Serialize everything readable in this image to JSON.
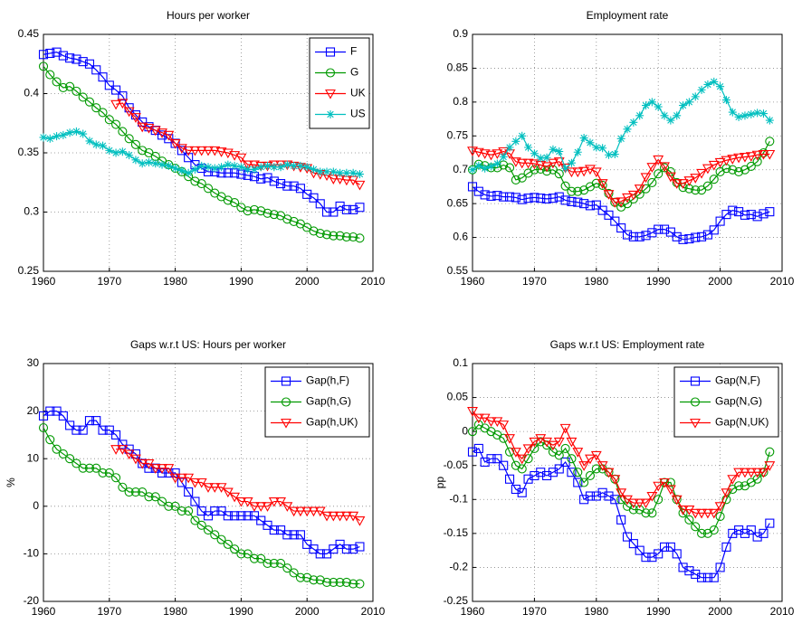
{
  "chart_data": [
    {
      "type": "line",
      "title": "Hours per worker",
      "x": [
        1960,
        1961,
        1962,
        1963,
        1964,
        1965,
        1966,
        1967,
        1968,
        1969,
        1970,
        1971,
        1972,
        1973,
        1974,
        1975,
        1976,
        1977,
        1978,
        1979,
        1980,
        1981,
        1982,
        1983,
        1984,
        1985,
        1986,
        1987,
        1988,
        1989,
        1990,
        1991,
        1992,
        1993,
        1994,
        1995,
        1996,
        1997,
        1998,
        1999,
        2000,
        2001,
        2002,
        2003,
        2004,
        2005,
        2006,
        2007,
        2008
      ],
      "xlim": [
        1960,
        2010
      ],
      "xticks": [
        1960,
        1970,
        1980,
        1990,
        2000,
        2010
      ],
      "ylim": [
        0.25,
        0.45
      ],
      "yticks": [
        0.25,
        0.3,
        0.35,
        0.4,
        0.45
      ],
      "grid": true,
      "legend": "northeast",
      "series": [
        {
          "name": "F",
          "color": "#0000ff",
          "marker": "square",
          "values": [
            0.433,
            0.434,
            0.435,
            0.432,
            0.43,
            0.429,
            0.427,
            0.425,
            0.42,
            0.414,
            0.407,
            0.403,
            0.398,
            0.388,
            0.382,
            0.376,
            0.372,
            0.369,
            0.365,
            0.362,
            0.358,
            0.352,
            0.346,
            0.34,
            0.337,
            0.334,
            0.334,
            0.333,
            0.333,
            0.333,
            0.332,
            0.331,
            0.33,
            0.328,
            0.329,
            0.326,
            0.324,
            0.322,
            0.322,
            0.32,
            0.315,
            0.312,
            0.307,
            0.3,
            0.3,
            0.305,
            0.302,
            0.302,
            0.304
          ]
        },
        {
          "name": "G",
          "color": "#009900",
          "marker": "circle",
          "values": [
            0.423,
            0.416,
            0.41,
            0.405,
            0.406,
            0.402,
            0.397,
            0.393,
            0.388,
            0.384,
            0.378,
            0.374,
            0.368,
            0.362,
            0.357,
            0.352,
            0.35,
            0.347,
            0.343,
            0.34,
            0.337,
            0.334,
            0.33,
            0.326,
            0.324,
            0.32,
            0.316,
            0.313,
            0.31,
            0.308,
            0.304,
            0.301,
            0.302,
            0.301,
            0.299,
            0.298,
            0.297,
            0.294,
            0.292,
            0.29,
            0.287,
            0.284,
            0.282,
            0.281,
            0.28,
            0.28,
            0.279,
            0.279,
            0.278
          ]
        },
        {
          "name": "UK",
          "color": "#ff0000",
          "marker": "triangle",
          "values": [
            null,
            null,
            null,
            null,
            null,
            null,
            null,
            null,
            null,
            null,
            null,
            0.391,
            0.392,
            0.385,
            0.38,
            0.372,
            0.371,
            0.369,
            0.367,
            0.365,
            0.358,
            0.354,
            0.352,
            0.352,
            0.352,
            0.352,
            0.352,
            0.351,
            0.35,
            0.348,
            0.346,
            0.34,
            0.34,
            0.339,
            0.339,
            0.34,
            0.34,
            0.34,
            0.339,
            0.338,
            0.337,
            0.333,
            0.332,
            0.331,
            0.328,
            0.328,
            0.327,
            0.327,
            0.323
          ]
        },
        {
          "name": "US",
          "color": "#00bfbf",
          "marker": "star",
          "values": [
            0.363,
            0.362,
            0.364,
            0.365,
            0.367,
            0.368,
            0.366,
            0.36,
            0.357,
            0.356,
            0.352,
            0.35,
            0.351,
            0.348,
            0.344,
            0.341,
            0.342,
            0.341,
            0.34,
            0.339,
            0.337,
            0.335,
            0.333,
            0.336,
            0.339,
            0.338,
            0.337,
            0.338,
            0.34,
            0.339,
            0.338,
            0.336,
            0.336,
            0.338,
            0.339,
            0.338,
            0.338,
            0.34,
            0.339,
            0.339,
            0.338,
            0.336,
            0.334,
            0.334,
            0.334,
            0.333,
            0.333,
            0.333,
            0.332
          ]
        }
      ]
    },
    {
      "type": "line",
      "title": "Employment rate",
      "x": [
        1960,
        1961,
        1962,
        1963,
        1964,
        1965,
        1966,
        1967,
        1968,
        1969,
        1970,
        1971,
        1972,
        1973,
        1974,
        1975,
        1976,
        1977,
        1978,
        1979,
        1980,
        1981,
        1982,
        1983,
        1984,
        1985,
        1986,
        1987,
        1988,
        1989,
        1990,
        1991,
        1992,
        1993,
        1994,
        1995,
        1996,
        1997,
        1998,
        1999,
        2000,
        2001,
        2002,
        2003,
        2004,
        2005,
        2006,
        2007,
        2008
      ],
      "xlim": [
        1960,
        2010
      ],
      "xticks": [
        1960,
        1970,
        1980,
        1990,
        2000,
        2010
      ],
      "ylim": [
        0.55,
        0.9
      ],
      "yticks": [
        0.55,
        0.6,
        0.65,
        0.7,
        0.75,
        0.8,
        0.85,
        0.9
      ],
      "grid": true,
      "series": [
        {
          "name": "F",
          "color": "#0000ff",
          "marker": "square",
          "values": [
            0.675,
            0.668,
            0.663,
            0.661,
            0.662,
            0.66,
            0.66,
            0.659,
            0.656,
            0.658,
            0.659,
            0.658,
            0.657,
            0.658,
            0.66,
            0.655,
            0.653,
            0.652,
            0.65,
            0.647,
            0.648,
            0.64,
            0.633,
            0.624,
            0.614,
            0.604,
            0.601,
            0.601,
            0.603,
            0.607,
            0.612,
            0.612,
            0.608,
            0.601,
            0.597,
            0.598,
            0.6,
            0.601,
            0.604,
            0.611,
            0.624,
            0.634,
            0.64,
            0.638,
            0.633,
            0.634,
            0.631,
            0.635,
            0.638
          ]
        },
        {
          "name": "G",
          "color": "#009900",
          "marker": "circle",
          "values": [
            0.7,
            0.708,
            0.706,
            0.703,
            0.703,
            0.707,
            0.703,
            0.685,
            0.688,
            0.695,
            0.7,
            0.701,
            0.698,
            0.7,
            0.694,
            0.676,
            0.668,
            0.668,
            0.67,
            0.675,
            0.68,
            0.677,
            0.665,
            0.652,
            0.645,
            0.65,
            0.657,
            0.664,
            0.672,
            0.681,
            0.694,
            0.703,
            0.697,
            0.681,
            0.674,
            0.672,
            0.67,
            0.67,
            0.676,
            0.686,
            0.697,
            0.702,
            0.7,
            0.697,
            0.7,
            0.705,
            0.712,
            0.725,
            0.742
          ]
        },
        {
          "name": "UK",
          "color": "#ff0000",
          "marker": "triangle",
          "values": [
            0.728,
            0.726,
            0.724,
            0.722,
            0.724,
            0.727,
            0.724,
            0.712,
            0.71,
            0.71,
            0.709,
            0.707,
            0.705,
            0.71,
            0.712,
            0.703,
            0.697,
            0.697,
            0.698,
            0.701,
            0.697,
            0.68,
            0.664,
            0.652,
            0.653,
            0.659,
            0.663,
            0.672,
            0.689,
            0.704,
            0.715,
            0.705,
            0.69,
            0.68,
            0.68,
            0.684,
            0.688,
            0.695,
            0.702,
            0.707,
            0.711,
            0.714,
            0.716,
            0.718,
            0.719,
            0.72,
            0.722,
            0.723,
            0.723
          ]
        },
        {
          "name": "US",
          "color": "#00bfbf",
          "marker": "star",
          "values": [
            0.7,
            0.706,
            0.702,
            0.705,
            0.709,
            0.719,
            0.733,
            0.742,
            0.75,
            0.733,
            0.724,
            0.717,
            0.718,
            0.73,
            0.727,
            0.702,
            0.71,
            0.726,
            0.747,
            0.74,
            0.733,
            0.732,
            0.722,
            0.723,
            0.746,
            0.76,
            0.77,
            0.78,
            0.795,
            0.8,
            0.793,
            0.78,
            0.773,
            0.78,
            0.795,
            0.8,
            0.808,
            0.818,
            0.826,
            0.83,
            0.823,
            0.803,
            0.785,
            0.778,
            0.78,
            0.782,
            0.784,
            0.783,
            0.773
          ]
        }
      ]
    },
    {
      "type": "line",
      "title": "Gaps w.r.t US: Hours per worker",
      "ylabel": "%",
      "x": [
        1960,
        1961,
        1962,
        1963,
        1964,
        1965,
        1966,
        1967,
        1968,
        1969,
        1970,
        1971,
        1972,
        1973,
        1974,
        1975,
        1976,
        1977,
        1978,
        1979,
        1980,
        1981,
        1982,
        1983,
        1984,
        1985,
        1986,
        1987,
        1988,
        1989,
        1990,
        1991,
        1992,
        1993,
        1994,
        1995,
        1996,
        1997,
        1998,
        1999,
        2000,
        2001,
        2002,
        2003,
        2004,
        2005,
        2006,
        2007,
        2008
      ],
      "xlim": [
        1960,
        2010
      ],
      "xticks": [
        1960,
        1970,
        1980,
        1990,
        2000,
        2010
      ],
      "ylim": [
        -20,
        30
      ],
      "yticks": [
        -20,
        -10,
        0,
        10,
        20,
        30
      ],
      "grid": true,
      "legend": "northeast",
      "series": [
        {
          "name": "Gap(h,F)",
          "color": "#0000ff",
          "marker": "square",
          "values": [
            19,
            20,
            20,
            19,
            17,
            16,
            16,
            18,
            18,
            16,
            16,
            15,
            13,
            12,
            11,
            9,
            8,
            8,
            7,
            7,
            7,
            5,
            3,
            1,
            -1,
            -2,
            -1,
            -1,
            -2,
            -2,
            -2,
            -2,
            -2,
            -3,
            -4,
            -5,
            -5,
            -6,
            -6,
            -6,
            -8,
            -9,
            -10,
            -10,
            -9,
            -8,
            -9,
            -9,
            -8.5
          ]
        },
        {
          "name": "Gap(h,G)",
          "color": "#009900",
          "marker": "circle",
          "values": [
            16.5,
            14,
            12,
            11,
            10,
            9,
            8,
            8,
            8,
            7,
            7,
            6,
            4,
            3,
            3,
            3,
            2,
            2,
            1,
            0,
            0,
            -1,
            -1,
            -3,
            -4,
            -5,
            -6,
            -7,
            -8,
            -9,
            -10,
            -10,
            -11,
            -11,
            -12,
            -12,
            -12,
            -13,
            -14,
            -15,
            -15,
            -15.5,
            -15.5,
            -16,
            -16,
            -16,
            -16,
            -16.3,
            -16.3
          ]
        },
        {
          "name": "Gap(h,UK)",
          "color": "#ff0000",
          "marker": "triangle",
          "values": [
            null,
            null,
            null,
            null,
            null,
            null,
            null,
            null,
            null,
            null,
            null,
            12,
            12,
            11,
            10,
            9,
            9,
            8,
            8,
            8,
            6,
            6,
            6,
            5,
            5,
            4,
            4,
            4,
            3,
            2,
            1,
            1,
            0,
            0,
            0,
            1,
            1,
            0,
            -1,
            -1,
            -1,
            -1,
            -1,
            -2,
            -2,
            -2,
            -2,
            -2,
            -3
          ]
        }
      ]
    },
    {
      "type": "line",
      "title": "Gaps w.r.t US: Employment rate",
      "ylabel": "pp",
      "x": [
        1960,
        1961,
        1962,
        1963,
        1964,
        1965,
        1966,
        1967,
        1968,
        1969,
        1970,
        1971,
        1972,
        1973,
        1974,
        1975,
        1976,
        1977,
        1978,
        1979,
        1980,
        1981,
        1982,
        1983,
        1984,
        1985,
        1986,
        1987,
        1988,
        1989,
        1990,
        1991,
        1992,
        1993,
        1994,
        1995,
        1996,
        1997,
        1998,
        1999,
        2000,
        2001,
        2002,
        2003,
        2004,
        2005,
        2006,
        2007,
        2008
      ],
      "xlim": [
        1960,
        2010
      ],
      "xticks": [
        1960,
        1970,
        1980,
        1990,
        2000,
        2010
      ],
      "ylim": [
        -0.25,
        0.1
      ],
      "yticks": [
        -0.25,
        -0.2,
        -0.15,
        -0.1,
        -0.05,
        0,
        0.05,
        0.1
      ],
      "grid": true,
      "legend": "northeast",
      "series": [
        {
          "name": "Gap(N,F)",
          "color": "#0000ff",
          "marker": "square",
          "values": [
            -0.03,
            -0.025,
            -0.045,
            -0.04,
            -0.04,
            -0.05,
            -0.07,
            -0.085,
            -0.09,
            -0.07,
            -0.065,
            -0.06,
            -0.065,
            -0.06,
            -0.055,
            -0.045,
            -0.06,
            -0.075,
            -0.1,
            -0.095,
            -0.095,
            -0.09,
            -0.095,
            -0.1,
            -0.13,
            -0.155,
            -0.165,
            -0.175,
            -0.185,
            -0.185,
            -0.18,
            -0.17,
            -0.17,
            -0.18,
            -0.2,
            -0.205,
            -0.21,
            -0.215,
            -0.215,
            -0.215,
            -0.2,
            -0.17,
            -0.15,
            -0.145,
            -0.15,
            -0.145,
            -0.155,
            -0.15,
            -0.135
          ]
        },
        {
          "name": "Gap(N,G)",
          "color": "#009900",
          "marker": "circle",
          "values": [
            0.0,
            0.01,
            0.005,
            0.0,
            -0.005,
            -0.01,
            -0.03,
            -0.05,
            -0.055,
            -0.04,
            -0.025,
            -0.015,
            -0.02,
            -0.03,
            -0.035,
            -0.025,
            -0.04,
            -0.06,
            -0.075,
            -0.065,
            -0.055,
            -0.055,
            -0.06,
            -0.07,
            -0.1,
            -0.11,
            -0.115,
            -0.115,
            -0.12,
            -0.12,
            -0.1,
            -0.075,
            -0.075,
            -0.1,
            -0.12,
            -0.13,
            -0.14,
            -0.15,
            -0.15,
            -0.145,
            -0.125,
            -0.1,
            -0.085,
            -0.08,
            -0.08,
            -0.075,
            -0.07,
            -0.06,
            -0.03
          ]
        },
        {
          "name": "Gap(N,UK)",
          "color": "#ff0000",
          "marker": "triangle",
          "values": [
            0.03,
            0.02,
            0.02,
            0.015,
            0.015,
            0.01,
            -0.01,
            -0.03,
            -0.04,
            -0.025,
            -0.015,
            -0.01,
            -0.015,
            -0.02,
            -0.015,
            0.005,
            -0.015,
            -0.03,
            -0.05,
            -0.04,
            -0.035,
            -0.05,
            -0.06,
            -0.07,
            -0.09,
            -0.1,
            -0.105,
            -0.105,
            -0.105,
            -0.095,
            -0.08,
            -0.075,
            -0.085,
            -0.1,
            -0.115,
            -0.115,
            -0.12,
            -0.12,
            -0.12,
            -0.12,
            -0.11,
            -0.09,
            -0.07,
            -0.06,
            -0.06,
            -0.06,
            -0.06,
            -0.06,
            -0.05
          ]
        }
      ]
    }
  ]
}
